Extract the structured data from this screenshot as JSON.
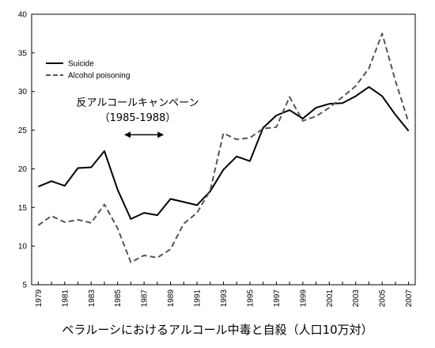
{
  "chart_data": {
    "type": "line",
    "x": [
      1979,
      1980,
      1981,
      1982,
      1983,
      1984,
      1985,
      1986,
      1987,
      1988,
      1989,
      1990,
      1991,
      1992,
      1993,
      1994,
      1995,
      1996,
      1997,
      1998,
      1999,
      2000,
      2001,
      2002,
      2003,
      2004,
      2005,
      2006,
      2007
    ],
    "xticks": [
      "1979",
      "1981",
      "1983",
      "1985",
      "1987",
      "1989",
      "1991",
      "1993",
      "1995",
      "1997",
      "1999",
      "2001",
      "2003",
      "2005",
      "2007"
    ],
    "yticks": [
      "5",
      "10",
      "15",
      "20",
      "25",
      "30",
      "35",
      "40"
    ],
    "ylim": [
      5,
      40
    ],
    "xlim": [
      1978.5,
      2007.5
    ],
    "series": [
      {
        "name": "Suicide",
        "style": "solid",
        "color": "#000000",
        "values": [
          17.7,
          18.4,
          17.8,
          20.1,
          20.2,
          22.3,
          17.3,
          13.5,
          14.3,
          14.0,
          16.1,
          15.7,
          15.3,
          17.1,
          19.9,
          21.6,
          21.0,
          25.3,
          26.9,
          27.6,
          26.5,
          27.9,
          28.4,
          28.5,
          29.4,
          30.6,
          29.4,
          27.0,
          24.9
        ]
      },
      {
        "name": "Alcohol poisoning",
        "style": "dashed",
        "color": "#555555",
        "values": [
          12.7,
          13.9,
          13.1,
          13.4,
          13.0,
          15.4,
          12.3,
          7.9,
          8.8,
          8.5,
          9.6,
          12.9,
          14.3,
          17.2,
          24.6,
          23.8,
          24.0,
          25.2,
          25.4,
          29.3,
          26.2,
          26.8,
          27.9,
          29.3,
          30.7,
          33.0,
          37.5,
          31.4,
          26.0
        ]
      }
    ],
    "legend_position": "top-left",
    "grid": false,
    "annotation": {
      "text": "反アルコールキャンペーン",
      "period": "（1985-1988）",
      "arrow_from": 1985.5,
      "arrow_to": 1988.5,
      "arrow_y": 24.4
    }
  },
  "caption": "ベラルーシにおけるアルコール中毒と自殺（人口10万対）"
}
